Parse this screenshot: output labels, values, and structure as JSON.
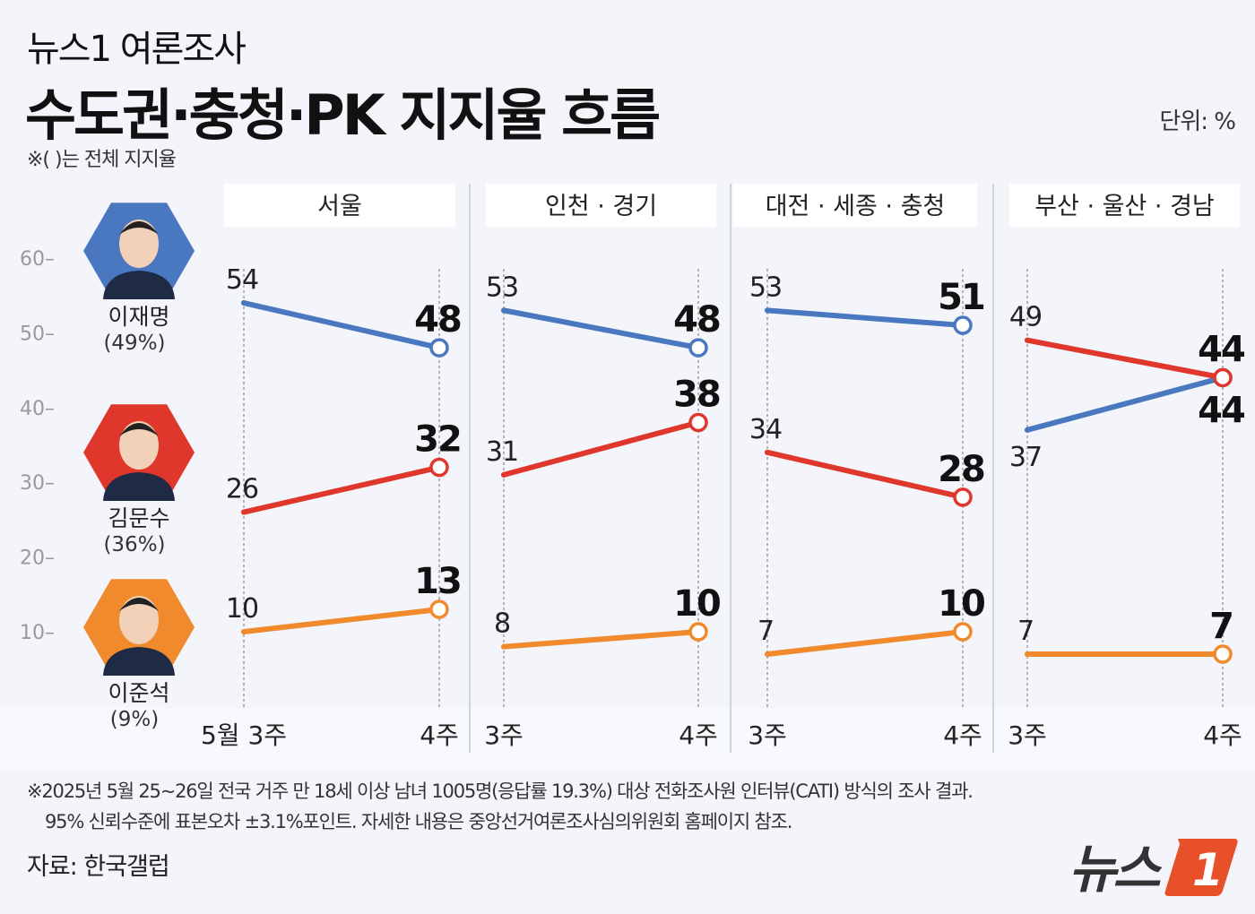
{
  "header": {
    "kicker": "뉴스1 여론조사",
    "title": "수도권·충청·PK 지지율 흐름",
    "note": "※( )는 전체 지지율",
    "unit": "단위: %"
  },
  "candidates": [
    {
      "name": "이재명",
      "overall": "(49%)",
      "color": "#4a78c0"
    },
    {
      "name": "김문수",
      "overall": "(36%)",
      "color": "#e0372c"
    },
    {
      "name": "이준석",
      "overall": "(9%)",
      "color": "#f08a2c"
    }
  ],
  "chart_data": {
    "type": "line",
    "ylim": [
      10,
      60
    ],
    "yticks": [
      "60",
      "50",
      "40",
      "30",
      "20",
      "10"
    ],
    "grid": false,
    "panels": [
      {
        "title": "서울",
        "x": [
          "5월 3주",
          "4주"
        ],
        "series": [
          {
            "name": "이재명",
            "values": [
              54,
              48
            ]
          },
          {
            "name": "김문수",
            "values": [
              26,
              32
            ]
          },
          {
            "name": "이준석",
            "values": [
              10,
              13
            ]
          }
        ]
      },
      {
        "title": "인천 · 경기",
        "x": [
          "3주",
          "4주"
        ],
        "series": [
          {
            "name": "이재명",
            "values": [
              53,
              48
            ]
          },
          {
            "name": "김문수",
            "values": [
              31,
              38
            ]
          },
          {
            "name": "이준석",
            "values": [
              8,
              10
            ]
          }
        ]
      },
      {
        "title": "대전 · 세종 · 충청",
        "x": [
          "3주",
          "4주"
        ],
        "series": [
          {
            "name": "이재명",
            "values": [
              53,
              51
            ]
          },
          {
            "name": "김문수",
            "values": [
              34,
              28
            ]
          },
          {
            "name": "이준석",
            "values": [
              7,
              10
            ]
          }
        ]
      },
      {
        "title": "부산 · 울산 · 경남",
        "x": [
          "3주",
          "4주"
        ],
        "series": [
          {
            "name": "이재명",
            "values": [
              37,
              44
            ]
          },
          {
            "name": "김문수",
            "values": [
              49,
              44
            ]
          },
          {
            "name": "이준석",
            "values": [
              7,
              7
            ]
          }
        ]
      }
    ]
  },
  "footer": {
    "footnote1": "※2025년 5월 25~26일 전국 거주 만 18세 이상 남녀 1005명(응답률 19.3%) 대상 전화조사원 인터뷰(CATI) 방식의 조사 결과.",
    "footnote2": "95% 신뢰수준에 표본오차 ±3.1%포인트. 자세한 내용은 중앙선거여론조사심의위원회 홈페이지 참조.",
    "source": "자료: 한국갤럽",
    "logo": "뉴스1"
  }
}
